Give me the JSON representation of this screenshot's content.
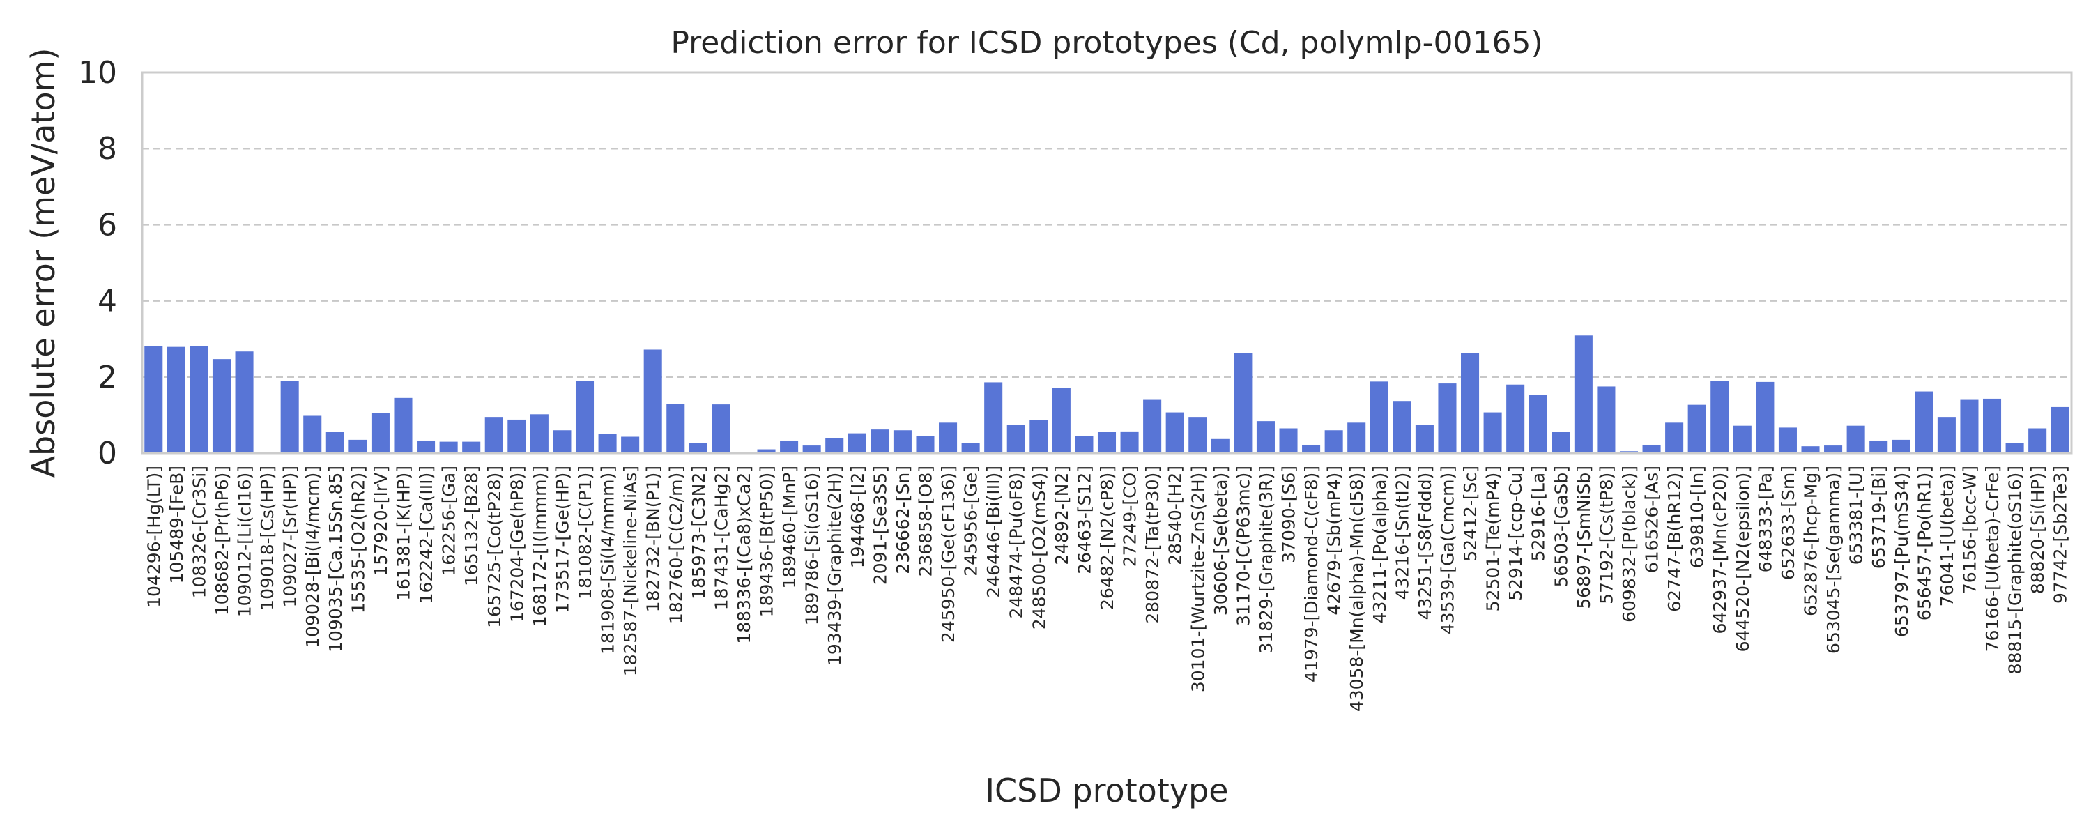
{
  "chart_data": {
    "type": "bar",
    "title": "Prediction error for ICSD prototypes (Cd, polymlp-00165)",
    "xlabel": "ICSD prototype",
    "ylabel": "Absolute error (meV/atom)",
    "ylim": [
      0,
      10
    ],
    "yticks": [
      "0",
      "2",
      "4",
      "6",
      "8",
      "10"
    ],
    "grid": "horizontal dashed",
    "bar_color": "#5875d6",
    "categories": [
      "104296-[Hg(LT)]",
      "105489-[FeB]",
      "108326-[Cr3Si]",
      "108682-[Pr(hP6)]",
      "109012-[Li(cI16)]",
      "109018-[Cs(HP)]",
      "109027-[Sr(HP)]",
      "109028-[Bi(I4/mcm)]",
      "109035-[Ca.15Sn.85]",
      "15535-[O2(hR2)]",
      "157920-[IrV]",
      "161381-[K(HP)]",
      "162242-[Ca(III)]",
      "162256-[Ga]",
      "165132-[B28]",
      "165725-[Co(tP28)]",
      "167204-[Ge(hP8)]",
      "168172-[I(Immm)]",
      "173517-[Ge(HP)]",
      "181082-[C(P1)]",
      "181908-[Si(I4/mmm)]",
      "182587-[Nickeline-NiAs]",
      "182732-[BN(P1)]",
      "182760-[C(C2/m)]",
      "185973-[C3N2]",
      "187431-[CaHg2]",
      "188336-[(Ca8)xCa2]",
      "189436-[B(tP50)]",
      "189460-[MnP]",
      "189786-[Si(oS16)]",
      "193439-[Graphite(2H)]",
      "194468-[I2]",
      "2091-[Se3S5]",
      "236662-[Sn]",
      "236858-[O8]",
      "245950-[Ge(cF136)]",
      "245956-[Ge]",
      "246446-[Bi(III)]",
      "248474-[Pu(oF8)]",
      "248500-[O2(mS4)]",
      "24892-[N2]",
      "26463-[S12]",
      "26482-[N2(cP8)]",
      "27249-[CO]",
      "280872-[Ta(tP30)]",
      "28540-[H2]",
      "30101-[Wurtzite-ZnS(2H)]",
      "30606-[Se(beta)]",
      "31170-[C(P63mc)]",
      "31829-[Graphite(3R)]",
      "37090-[S6]",
      "41979-[Diamond-C(cF8)]",
      "42679-[Sb(mP4)]",
      "43058-[Mn(alpha)-Mn(cI58)]",
      "43211-[Po(alpha)]",
      "43216-[Sn(tI2)]",
      "43251-[S8(Fddd)]",
      "43539-[Ga(Cmcm)]",
      "52412-[Sc]",
      "52501-[Te(mP4)]",
      "52914-[ccp-Cu]",
      "52916-[La]",
      "56503-[GaSb]",
      "56897-[SmNiSb]",
      "57192-[Cs(tP8)]",
      "609832-[P(black)]",
      "616526-[As]",
      "62747-[B(hR12)]",
      "639810-[In]",
      "642937-[Mn(cP20)]",
      "644520-[N2(epsilon)]",
      "648333-[Pa]",
      "652633-[Sm]",
      "652876-[hcp-Mg]",
      "653045-[Se(gamma)]",
      "653381-[U]",
      "653719-[Bi]",
      "653797-[Pu(mS34)]",
      "656457-[Po(hR1)]",
      "76041-[U(beta)]",
      "76156-[bcc-W]",
      "76166-[U(beta)-CrFe]",
      "88815-[Graphite(oS16)]",
      "88820-[Si(HP)]",
      "97742-[Sb2Te3]"
    ],
    "values": [
      2.82,
      2.79,
      2.82,
      2.47,
      2.67,
      0.02,
      1.9,
      0.98,
      0.55,
      0.35,
      1.05,
      1.45,
      0.33,
      0.3,
      0.3,
      0.95,
      0.88,
      1.02,
      0.6,
      1.9,
      0.5,
      0.43,
      2.72,
      1.3,
      0.27,
      1.28,
      0.02,
      0.1,
      0.33,
      0.2,
      0.4,
      0.52,
      0.62,
      0.6,
      0.45,
      0.8,
      0.27,
      1.86,
      0.75,
      0.87,
      1.72,
      0.45,
      0.55,
      0.57,
      1.4,
      1.07,
      0.95,
      0.37,
      2.62,
      0.84,
      0.65,
      0.22,
      0.6,
      0.8,
      1.88,
      1.37,
      0.75,
      1.83,
      2.62,
      1.07,
      1.8,
      1.53,
      0.55,
      3.09,
      1.75,
      0.05,
      0.22,
      0.8,
      1.27,
      1.9,
      0.72,
      1.87,
      0.67,
      0.18,
      0.2,
      0.72,
      0.33,
      0.35,
      1.62,
      0.95,
      1.4,
      1.43,
      0.27,
      0.65,
      1.21
    ]
  }
}
